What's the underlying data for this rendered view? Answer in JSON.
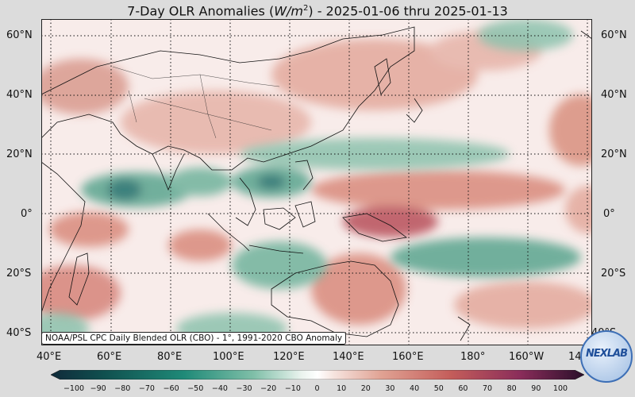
{
  "title_prefix": "7-Day OLR Anomalies (",
  "title_unit": "W/m",
  "title_unit_exp": "2",
  "title_suffix": ") - 2025-01-06 thru 2025-01-13",
  "lat_labels_left": [
    "60°N",
    "40°N",
    "20°N",
    "0°",
    "20°S",
    "40°S"
  ],
  "lat_labels_right": [
    "60°N",
    "40°N",
    "20°N",
    "0°",
    "20°S",
    "40°S"
  ],
  "lon_labels": [
    "40°E",
    "60°E",
    "80°E",
    "100°E",
    "120°E",
    "140°E",
    "160°E",
    "180°",
    "160°W",
    "14"
  ],
  "credit": "NOAA/PSL CPC Daily Blended OLR (CBO) - 1°, 1991-2020 CBO Anomaly",
  "colorbar_ticks": [
    "−100",
    "−90",
    "−80",
    "−70",
    "−60",
    "−50",
    "−40",
    "−30",
    "−20",
    "−10",
    "0",
    "10",
    "20",
    "30",
    "40",
    "50",
    "60",
    "70",
    "80",
    "90",
    "100"
  ],
  "logo_text": "NEXLAB",
  "colors": {
    "negative_strong": "#0f4a4a",
    "negative": "#1a8a70",
    "neutral": "#f8ecea",
    "positive": "#c8665a",
    "positive_strong": "#5a0f3a"
  }
}
